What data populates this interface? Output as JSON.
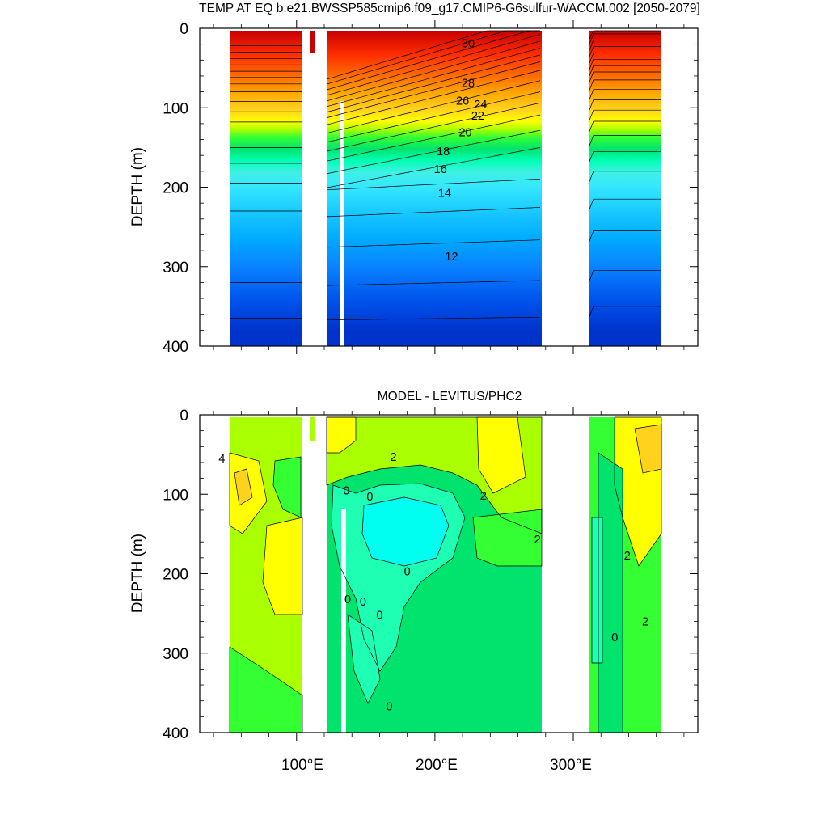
{
  "chart_data": [
    {
      "type": "heatmap",
      "title": "TEMP AT EQ b.e21.BWSSP585cmip6.f09_g17.CMIP6-G6sulfur-WACCM.002 [2050-2079]",
      "xlabel": "",
      "ylabel": "DEPTH (m)",
      "x_ticks": [
        100,
        200,
        300
      ],
      "x_tick_labels": [
        "100°E",
        "200°E",
        "300°E"
      ],
      "xlim": [
        30,
        390
      ],
      "y_ticks": [
        0,
        100,
        200,
        300,
        400
      ],
      "y_tick_labels": [
        "0",
        "100",
        "200",
        "300",
        "400"
      ],
      "ylim": [
        0,
        400
      ],
      "contour_labels": [
        {
          "text": "30",
          "lon": 224,
          "depth": 24
        },
        {
          "text": "28",
          "lon": 224,
          "depth": 74
        },
        {
          "text": "26",
          "lon": 220,
          "depth": 96
        },
        {
          "text": "24",
          "lon": 233,
          "depth": 101
        },
        {
          "text": "22",
          "lon": 231,
          "depth": 115
        },
        {
          "text": "20",
          "lon": 222,
          "depth": 136
        },
        {
          "text": "18",
          "lon": 206,
          "depth": 160
        },
        {
          "text": "16",
          "lon": 204,
          "depth": 182
        },
        {
          "text": "14",
          "lon": 207,
          "depth": 212
        },
        {
          "text": "12",
          "lon": 212,
          "depth": 292
        }
      ],
      "levels": [
        {
          "color": "#0033cc",
          "deeper_than": 380
        },
        {
          "color": "#0055ee",
          "deeper_than": 340
        },
        {
          "color": "#0a82ff",
          "deeper_than": 300
        },
        {
          "color": "#00aaff",
          "deeper_than": 265
        },
        {
          "color": "#19c8ff",
          "deeper_than": 230
        },
        {
          "color": "#33e6ff",
          "deeper_than": 200
        },
        {
          "color": "#40f0e6",
          "deeper_than": 180
        },
        {
          "color": "#00ffb4",
          "deeper_than": 165
        },
        {
          "color": "#00e46e",
          "deeper_than": 150
        },
        {
          "color": "#33ff33",
          "deeper_than": 135
        },
        {
          "color": "#aaff00",
          "deeper_than": 125
        },
        {
          "color": "#ffff00",
          "deeper_than": 115
        },
        {
          "color": "#ffd21e",
          "deeper_than": 100
        },
        {
          "color": "#ffaa00",
          "deeper_than": 80
        },
        {
          "color": "#ff7300",
          "deeper_than": 60
        },
        {
          "color": "#ff2d00",
          "deeper_than": 30
        },
        {
          "color": "#c80000",
          "deeper_than": 0
        }
      ]
    },
    {
      "type": "heatmap",
      "title": "MODEL - LEVITUS/PHC2",
      "xlabel": "",
      "ylabel": "DEPTH (m)",
      "x_ticks": [
        100,
        200,
        300
      ],
      "x_tick_labels": [
        "100°E",
        "200°E",
        "300°E"
      ],
      "xlim": [
        30,
        390
      ],
      "y_ticks": [
        0,
        100,
        200,
        300,
        400
      ],
      "y_tick_labels": [
        "0",
        "100",
        "200",
        "300",
        "400"
      ],
      "ylim": [
        0,
        400
      ],
      "contour_labels": [
        {
          "text": "4",
          "lon": 46,
          "depth": 60
        },
        {
          "text": "2",
          "lon": 170,
          "depth": 58
        },
        {
          "text": "0",
          "lon": 136,
          "depth": 100
        },
        {
          "text": "0",
          "lon": 153,
          "depth": 108
        },
        {
          "text": "2",
          "lon": 235,
          "depth": 107
        },
        {
          "text": "2",
          "lon": 274,
          "depth": 162
        },
        {
          "text": "2",
          "lon": 339,
          "depth": 182
        },
        {
          "text": "0",
          "lon": 180,
          "depth": 202
        },
        {
          "text": "0",
          "lon": 137,
          "depth": 237
        },
        {
          "text": "0",
          "lon": 148,
          "depth": 240
        },
        {
          "text": "0",
          "lon": 160,
          "depth": 257
        },
        {
          "text": "2",
          "lon": 352,
          "depth": 265
        },
        {
          "text": "0",
          "lon": 330,
          "depth": 285
        },
        {
          "text": "0",
          "lon": 167,
          "depth": 372
        }
      ],
      "levels": [
        {
          "color": "#00fff0",
          "range": "< -1"
        },
        {
          "color": "#1effb4",
          "range": "-1 to 0"
        },
        {
          "color": "#00e46e",
          "range": "0 to 1"
        },
        {
          "color": "#33ff33",
          "range": "1 to 2"
        },
        {
          "color": "#aaff00",
          "range": "2 to 3"
        },
        {
          "color": "#ffff00",
          "range": "3 to 4"
        },
        {
          "color": "#ffd21e",
          "range": "4 to 5"
        },
        {
          "color": "#ffaa00",
          "range": "> 5"
        }
      ]
    }
  ]
}
